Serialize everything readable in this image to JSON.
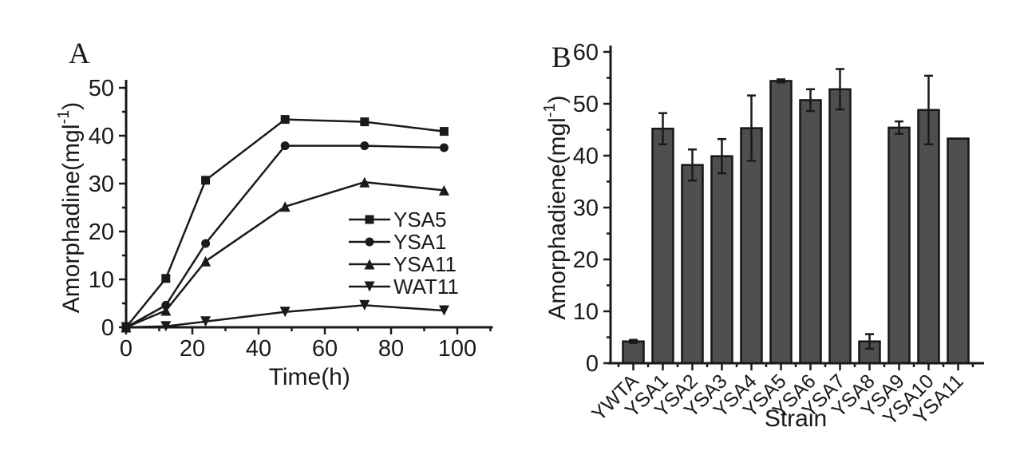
{
  "figure": {
    "background": "#ffffff",
    "ink_color": "#1a1a1a",
    "bar_fill_color": "#4f4f4f",
    "bar_stroke_color": "#161616"
  },
  "chart_data": [
    {
      "type": "line",
      "panel_label": "A",
      "xlabel": "Time(h)",
      "ylabel_main": "Amorphadine(mgl",
      "ylabel_sup": "-1",
      "ylabel_close": ")",
      "xlim": [
        0,
        110
      ],
      "ylim": [
        0,
        50
      ],
      "xticks": [
        0,
        20,
        40,
        60,
        80,
        100
      ],
      "yticks": [
        0,
        10,
        20,
        30,
        40,
        50
      ],
      "x_minor": [
        10,
        30,
        50,
        70,
        90,
        110
      ],
      "y_minor": [
        5,
        15,
        25,
        35,
        45
      ],
      "grid": false,
      "legend_position": "inside-right",
      "x": [
        0,
        12,
        24,
        48,
        72,
        96
      ],
      "series": [
        {
          "name": "YSA5",
          "marker": "square",
          "values": [
            0,
            10.2,
            30.7,
            43.4,
            42.9,
            40.9
          ]
        },
        {
          "name": "YSA1",
          "marker": "circle",
          "values": [
            0,
            4.6,
            17.5,
            37.9,
            37.9,
            37.5
          ]
        },
        {
          "name": "YSA11",
          "marker": "triangle-up",
          "values": [
            0,
            3.5,
            13.8,
            25.2,
            30.3,
            28.6
          ]
        },
        {
          "name": "WAT11",
          "marker": "triangle-down",
          "values": [
            0,
            0.2,
            1.2,
            3.2,
            4.6,
            3.5
          ]
        }
      ]
    },
    {
      "type": "bar",
      "panel_label": "B",
      "xlabel": "Strain",
      "ylabel_main": "Amorphadiene(mgl",
      "ylabel_sup": "-1",
      "ylabel_close": ")",
      "ylim": [
        0,
        60
      ],
      "yticks": [
        0,
        10,
        20,
        30,
        40,
        50,
        60
      ],
      "y_minor": [
        5,
        15,
        25,
        35,
        45,
        55
      ],
      "grid": false,
      "label_rotation": -45,
      "categories": [
        "YWTA",
        "YSA1",
        "YSA2",
        "YSA3",
        "YSA4",
        "YSA5",
        "YSA6",
        "YSA7",
        "YSA8",
        "YSA9",
        "YSA10",
        "YSA11"
      ],
      "values": [
        4.2,
        45.2,
        38.2,
        39.9,
        45.3,
        54.4,
        50.7,
        52.8,
        4.2,
        45.4,
        48.8,
        43.3
      ],
      "errors": [
        0.3,
        3.0,
        3.0,
        3.3,
        6.3,
        0.3,
        2.1,
        3.9,
        1.4,
        1.2,
        6.6,
        0
      ]
    }
  ]
}
